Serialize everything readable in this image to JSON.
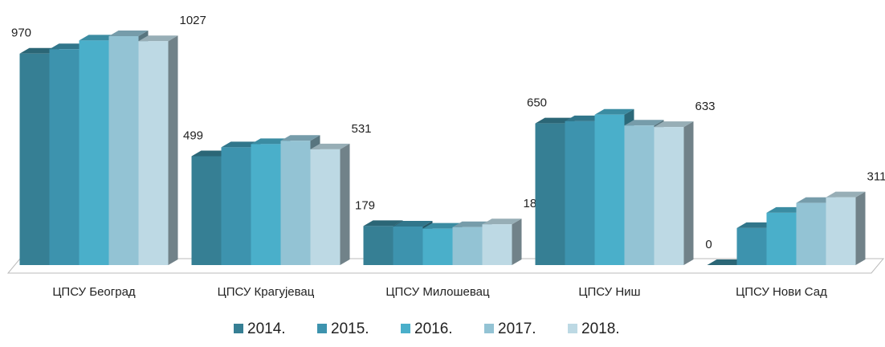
{
  "chart_data": {
    "type": "bar3d",
    "categories": [
      "ЦПСУ Београд",
      "ЦПСУ Крагујевац",
      "ЦПСУ Милошевац",
      "ЦПСУ Ниш",
      "ЦПСУ Нови Сад"
    ],
    "series": [
      {
        "name": "2014.",
        "color": "#367f94",
        "values": [
          970,
          499,
          179,
          650,
          0
        ],
        "data_labels": true
      },
      {
        "name": "2015.",
        "color": "#3d93ae",
        "values": [
          990,
          540,
          177,
          660,
          170
        ],
        "data_labels": false
      },
      {
        "name": "2016.",
        "color": "#4aafca",
        "values": [
          1030,
          555,
          167,
          690,
          240
        ],
        "data_labels": false
      },
      {
        "name": "2017.",
        "color": "#93c3d4",
        "values": [
          1050,
          570,
          174,
          640,
          285
        ],
        "data_labels": false
      },
      {
        "name": "2018.",
        "color": "#bdd9e4",
        "values": [
          1027,
          531,
          187,
          633,
          311
        ],
        "data_labels": true
      }
    ],
    "legend": "bottom"
  }
}
